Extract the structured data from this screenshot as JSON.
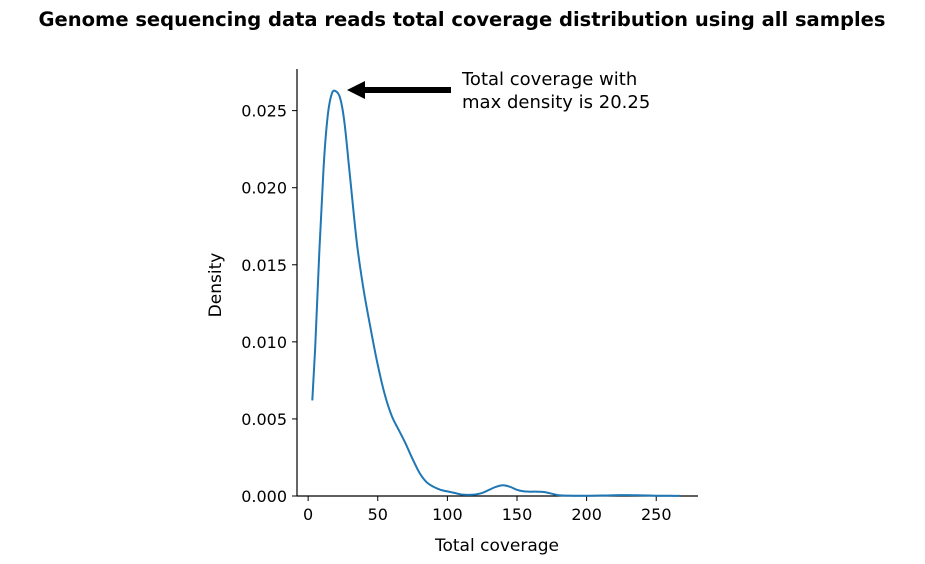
{
  "chart_data": {
    "type": "line",
    "title": "Genome sequencing data reads total coverage distribution using all samples",
    "xlabel": "Total coverage",
    "ylabel": "Density",
    "xlim": [
      -8,
      280
    ],
    "ylim": [
      0,
      0.0277
    ],
    "x_ticks": [
      0,
      50,
      100,
      150,
      200,
      250
    ],
    "x_tick_labels": [
      "0",
      "50",
      "100",
      "150",
      "200",
      "250"
    ],
    "y_ticks": [
      0,
      0.005,
      0.01,
      0.015,
      0.02,
      0.025
    ],
    "y_tick_labels": [
      "0.000",
      "0.005",
      "0.010",
      "0.015",
      "0.020",
      "0.025"
    ],
    "grid": false,
    "series": [
      {
        "color": "#1f77b4",
        "x": [
          3,
          5,
          8,
          11,
          14,
          17,
          20,
          23,
          26,
          30,
          35,
          40,
          45,
          50,
          55,
          60,
          65,
          70,
          75,
          80,
          85,
          90,
          95,
          100,
          105,
          110,
          115,
          120,
          125,
          130,
          135,
          140,
          145,
          150,
          155,
          160,
          165,
          170,
          175,
          180,
          190,
          200,
          210,
          220,
          230,
          240,
          250,
          260,
          267
        ],
        "y": [
          0.0062,
          0.0095,
          0.0158,
          0.0212,
          0.0246,
          0.0261,
          0.02625,
          0.0258,
          0.0243,
          0.0208,
          0.0164,
          0.0133,
          0.0108,
          0.0085,
          0.0066,
          0.0052,
          0.0043,
          0.0034,
          0.0024,
          0.0015,
          0.0009,
          0.0006,
          0.0004,
          0.0003,
          0.0002,
          0.0001,
          7e-05,
          0.0001,
          0.0002,
          0.0004,
          0.0006,
          0.0007,
          0.0006,
          0.0004,
          0.0003,
          0.00028,
          0.00028,
          0.00025,
          0.00015,
          5e-05,
          2e-05,
          2e-05,
          3e-05,
          5e-05,
          6e-05,
          4e-05,
          2e-05,
          1e-05,
          1e-05
        ]
      }
    ],
    "annotation": {
      "text_lines": [
        "Total coverage with",
        "max density is 20.25"
      ],
      "arrow_color": "#000000",
      "point": [
        20.25,
        0.0263
      ]
    }
  }
}
